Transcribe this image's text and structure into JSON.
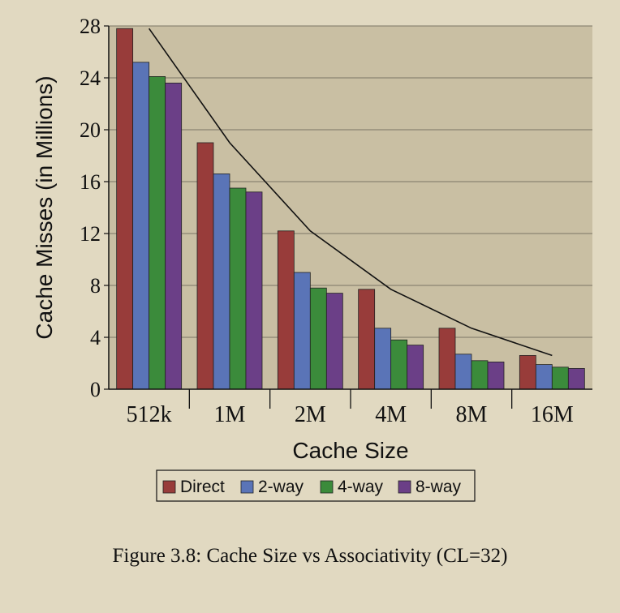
{
  "chart_data": {
    "type": "bar",
    "xlabel": "Cache Size",
    "ylabel": "Cache Misses (in Millions)",
    "categories": [
      "512k",
      "1M",
      "2M",
      "4M",
      "8M",
      "16M"
    ],
    "ylim": [
      0,
      28
    ],
    "yticks": [
      "0",
      "4",
      "8",
      "12",
      "16",
      "20",
      "24",
      "28"
    ],
    "grid": true,
    "legend_position": "bottom",
    "series": [
      {
        "name": "Direct",
        "color": "#983c3a",
        "values": [
          27.8,
          19.0,
          12.2,
          7.7,
          4.7,
          2.6
        ]
      },
      {
        "name": "2-way",
        "color": "#5a74b7",
        "values": [
          25.2,
          16.6,
          9.0,
          4.7,
          2.7,
          1.9
        ]
      },
      {
        "name": "4-way",
        "color": "#3b8b3b",
        "values": [
          24.1,
          15.5,
          7.8,
          3.8,
          2.2,
          1.7
        ]
      },
      {
        "name": "8-way",
        "color": "#6b3f87",
        "values": [
          23.6,
          15.2,
          7.4,
          3.4,
          2.1,
          1.6
        ]
      }
    ],
    "trend_line": [
      27.8,
      19.0,
      12.2,
      7.7,
      4.7,
      2.6
    ]
  },
  "caption": "Figure 3.8: Cache Size vs Associativity (CL=32)"
}
